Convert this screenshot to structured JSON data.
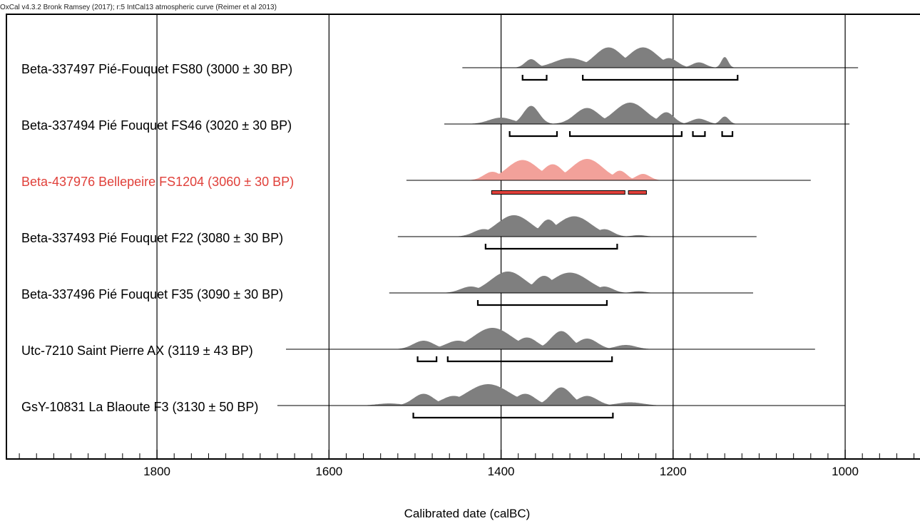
{
  "header": "OxCal v4.3.2 Bronk Ramsey (2017); r:5 IntCal13 atmospheric curve (Reimer et al 2013)",
  "chart_data": {
    "type": "area",
    "x_axis": {
      "label": "Calibrated date (calBC)",
      "range": [
        1975,
        913
      ],
      "reversed": true,
      "major_ticks": [
        1800,
        1600,
        1400,
        1200,
        1000
      ],
      "major_tick_labels": [
        "1800",
        "1600",
        "1400",
        "1200",
        "1000"
      ],
      "minor_tick_step": 20
    },
    "grid": true,
    "colors": {
      "normal": "#7f7f7f",
      "highlight": "#f2a19a",
      "highlight_text": "#e0403a",
      "line": "#000000"
    },
    "series": [
      {
        "name": "Beta-337497 Pié-Fouquet FS80 (3000 ± 30 BP)",
        "highlight": false,
        "span": [
          1445,
          985
        ],
        "peaks": [
          [
            1365,
            0.4,
            7
          ],
          [
            1320,
            0.45,
            18
          ],
          [
            1275,
            0.95,
            16
          ],
          [
            1235,
            0.95,
            17
          ],
          [
            1205,
            0.45,
            10
          ],
          [
            1170,
            0.25,
            8
          ],
          [
            1140,
            0.5,
            4
          ]
        ],
        "ranges": [
          [
            1375,
            1347
          ],
          [
            1305,
            1125
          ]
        ]
      },
      {
        "name": "Beta-337494 Pié Fouquet FS46 (3020 ± 30 BP)",
        "highlight": false,
        "span": [
          1466,
          995
        ],
        "peaks": [
          [
            1400,
            0.3,
            14
          ],
          [
            1365,
            0.85,
            9
          ],
          [
            1300,
            0.75,
            14
          ],
          [
            1250,
            1.0,
            18
          ],
          [
            1208,
            0.55,
            9
          ],
          [
            1170,
            0.25,
            9
          ],
          [
            1140,
            0.35,
            5
          ]
        ],
        "ranges": [
          [
            1390,
            1335
          ],
          [
            1320,
            1190
          ],
          [
            1177,
            1163
          ],
          [
            1143,
            1131
          ]
        ]
      },
      {
        "name": "Beta-437976 Bellepeire FS1204 (3060 ± 30 BP)",
        "highlight": true,
        "span": [
          1510,
          1040
        ],
        "peaks": [
          [
            1410,
            0.4,
            10
          ],
          [
            1375,
            0.95,
            18
          ],
          [
            1340,
            0.75,
            12
          ],
          [
            1300,
            1.0,
            18
          ],
          [
            1262,
            0.45,
            8
          ],
          [
            1235,
            0.3,
            8
          ]
        ],
        "ranges": [
          [
            1411,
            1256
          ],
          [
            1252,
            1231
          ]
        ]
      },
      {
        "name": "Beta-337493 Pié Fouquet F22 (3080 ± 30 BP)",
        "highlight": false,
        "span": [
          1520,
          1103
        ],
        "peaks": [
          [
            1420,
            0.35,
            12
          ],
          [
            1385,
            1.0,
            20
          ],
          [
            1345,
            0.8,
            10
          ],
          [
            1315,
            0.95,
            20
          ],
          [
            1280,
            0.35,
            10
          ],
          [
            1240,
            0.07,
            8
          ]
        ],
        "ranges": [
          [
            1418,
            1265
          ]
        ]
      },
      {
        "name": "Beta-337496 Pié Fouquet F35 (3090 ± 30 BP)",
        "highlight": false,
        "span": [
          1530,
          1107
        ],
        "peaks": [
          [
            1435,
            0.3,
            12
          ],
          [
            1392,
            1.0,
            20
          ],
          [
            1350,
            0.8,
            12
          ],
          [
            1320,
            0.95,
            22
          ],
          [
            1280,
            0.3,
            10
          ],
          [
            1240,
            0.08,
            8
          ]
        ],
        "ranges": [
          [
            1427,
            1277
          ]
        ]
      },
      {
        "name": "Utc-7210 Saint Pierre AX (3119 ± 43 BP)",
        "highlight": false,
        "span": [
          1650,
          1035
        ],
        "peaks": [
          [
            1490,
            0.4,
            12
          ],
          [
            1450,
            0.4,
            14
          ],
          [
            1410,
            1.0,
            22
          ],
          [
            1370,
            0.55,
            12
          ],
          [
            1330,
            0.85,
            12
          ],
          [
            1300,
            0.5,
            12
          ],
          [
            1255,
            0.2,
            12
          ]
        ],
        "ranges": [
          [
            1497,
            1475
          ],
          [
            1462,
            1271
          ]
        ]
      },
      {
        "name": "GsY-10831 La Blaoute F3 (3130 ± 50 BP)",
        "highlight": false,
        "span": [
          1660,
          1000
        ],
        "peaks": [
          [
            1530,
            0.1,
            14
          ],
          [
            1490,
            0.55,
            12
          ],
          [
            1455,
            0.45,
            14
          ],
          [
            1415,
            1.0,
            25
          ],
          [
            1372,
            0.55,
            12
          ],
          [
            1330,
            0.85,
            12
          ],
          [
            1300,
            0.45,
            12
          ],
          [
            1250,
            0.15,
            15
          ]
        ],
        "ranges": [
          [
            1502,
            1270
          ]
        ]
      }
    ]
  }
}
